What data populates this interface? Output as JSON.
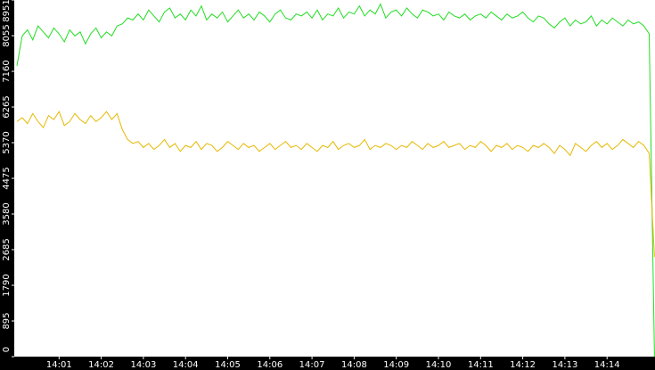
{
  "chart_data": {
    "type": "line",
    "categories": [
      null,
      null,
      null,
      null,
      null,
      null,
      null,
      null,
      "14:01",
      null,
      null,
      null,
      null,
      null,
      null,
      null,
      "14:02",
      null,
      null,
      null,
      null,
      null,
      null,
      null,
      "14:03",
      null,
      null,
      null,
      null,
      null,
      null,
      null,
      "14:04",
      null,
      null,
      null,
      null,
      null,
      null,
      null,
      "14:05",
      null,
      null,
      null,
      null,
      null,
      null,
      null,
      "14:06",
      null,
      null,
      null,
      null,
      null,
      null,
      null,
      "14:07",
      null,
      null,
      null,
      null,
      null,
      null,
      null,
      "14:08",
      null,
      null,
      null,
      null,
      null,
      null,
      null,
      "14:09",
      null,
      null,
      null,
      null,
      null,
      null,
      null,
      "14:10",
      null,
      null,
      null,
      null,
      null,
      null,
      null,
      "14:11",
      null,
      null,
      null,
      null,
      null,
      null,
      null,
      "14:12",
      null,
      null,
      null,
      null,
      null,
      null,
      null,
      "14:13",
      null,
      null,
      null,
      null,
      null,
      null,
      null,
      "14:14",
      null,
      null,
      null,
      null,
      null,
      null,
      null,
      null,
      null
    ],
    "series": [
      {
        "color": "#22dd22",
        "values": [
          7300,
          8050,
          8200,
          7950,
          8300,
          8150,
          8000,
          8250,
          8100,
          7900,
          8200,
          8050,
          8150,
          7850,
          8100,
          8250,
          8000,
          8150,
          8050,
          8300,
          8350,
          8500,
          8450,
          8600,
          8450,
          8700,
          8550,
          8400,
          8650,
          8750,
          8500,
          8600,
          8450,
          8700,
          8550,
          8800,
          8450,
          8600,
          8500,
          8650,
          8400,
          8550,
          8700,
          8500,
          8600,
          8450,
          8650,
          8550,
          8400,
          8600,
          8700,
          8500,
          8450,
          8600,
          8550,
          8650,
          8500,
          8700,
          8450,
          8600,
          8550,
          8750,
          8500,
          8650,
          8600,
          8800,
          8550,
          8700,
          8600,
          8850,
          8500,
          8650,
          8700,
          8550,
          8750,
          8600,
          8500,
          8700,
          8650,
          8550,
          8600,
          8450,
          8650,
          8550,
          8500,
          8600,
          8450,
          8550,
          8600,
          8500,
          8650,
          8550,
          8450,
          8600,
          8500,
          8550,
          8650,
          8500,
          8400,
          8550,
          8500,
          8350,
          8250,
          8400,
          8500,
          8300,
          8450,
          8350,
          8400,
          8550,
          8300,
          8450,
          8350,
          8500,
          8400,
          8300,
          8450,
          8350,
          8400,
          8300,
          8100,
          0
        ]
      },
      {
        "color": "#e6b800",
        "values": [
          5900,
          6000,
          5850,
          6100,
          5900,
          5750,
          6050,
          5950,
          6150,
          5800,
          5900,
          6100,
          5950,
          5850,
          6050,
          5900,
          6000,
          6150,
          5950,
          6100,
          5700,
          5450,
          5350,
          5400,
          5250,
          5350,
          5200,
          5300,
          5450,
          5250,
          5350,
          5150,
          5300,
          5250,
          5400,
          5200,
          5350,
          5300,
          5150,
          5250,
          5400,
          5300,
          5200,
          5350,
          5250,
          5300,
          5150,
          5250,
          5350,
          5200,
          5300,
          5400,
          5250,
          5300,
          5200,
          5350,
          5250,
          5150,
          5300,
          5250,
          5400,
          5200,
          5300,
          5350,
          5250,
          5300,
          5450,
          5200,
          5300,
          5250,
          5350,
          5300,
          5200,
          5300,
          5250,
          5400,
          5300,
          5200,
          5350,
          5250,
          5300,
          5400,
          5250,
          5300,
          5350,
          5200,
          5300,
          5250,
          5400,
          5300,
          5150,
          5300,
          5250,
          5350,
          5200,
          5300,
          5250,
          5150,
          5300,
          5250,
          5350,
          5250,
          5100,
          5300,
          5200,
          5050,
          5350,
          5250,
          5150,
          5300,
          5400,
          5250,
          5350,
          5200,
          5300,
          5450,
          5350,
          5250,
          5400,
          5300,
          5100,
          2500
        ]
      }
    ],
    "ylim": [
      0,
      8951
    ],
    "yticks": [
      0,
      895,
      1790,
      2685,
      3580,
      4475,
      5370,
      6265,
      7160,
      8055,
      8951
    ]
  }
}
